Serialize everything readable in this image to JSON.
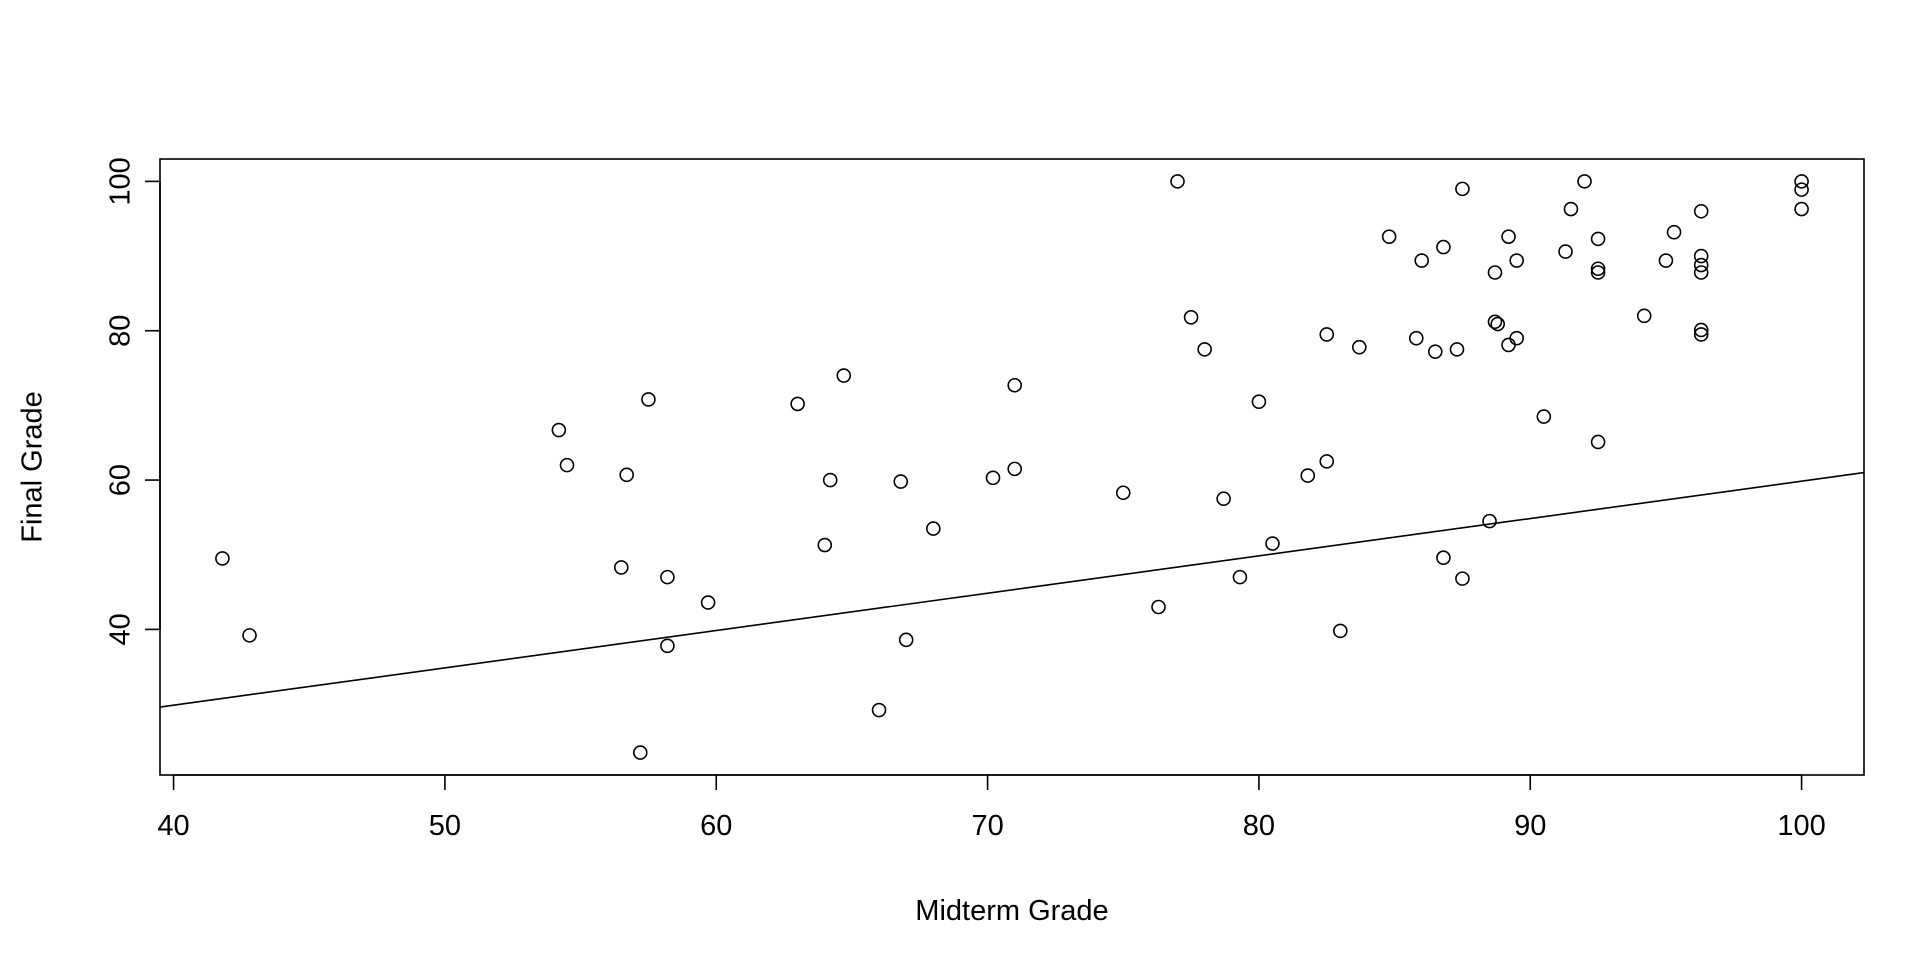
{
  "chart_data": {
    "type": "scatter",
    "title": "",
    "xlabel": "Midterm Grade",
    "ylabel": "Final Grade",
    "xlim": [
      39.5,
      102.3
    ],
    "ylim": [
      20.5,
      103
    ],
    "xticks": [
      40,
      50,
      60,
      70,
      80,
      90,
      100
    ],
    "yticks": [
      40,
      60,
      80,
      100
    ],
    "grid": false,
    "marker": "open-circle",
    "regression_line": {
      "x": [
        39.5,
        102.3
      ],
      "y": [
        29.6,
        61.0
      ]
    },
    "points": [
      {
        "x": 41.8,
        "y": 49.5
      },
      {
        "x": 42.8,
        "y": 39.2
      },
      {
        "x": 54.2,
        "y": 66.7
      },
      {
        "x": 54.5,
        "y": 62.0
      },
      {
        "x": 56.5,
        "y": 48.3
      },
      {
        "x": 56.7,
        "y": 60.7
      },
      {
        "x": 57.2,
        "y": 23.5
      },
      {
        "x": 57.5,
        "y": 70.8
      },
      {
        "x": 58.2,
        "y": 47.0
      },
      {
        "x": 58.2,
        "y": 37.8
      },
      {
        "x": 59.7,
        "y": 43.6
      },
      {
        "x": 63.0,
        "y": 70.2
      },
      {
        "x": 64.0,
        "y": 51.3
      },
      {
        "x": 64.2,
        "y": 60.0
      },
      {
        "x": 64.7,
        "y": 74.0
      },
      {
        "x": 66.0,
        "y": 29.2
      },
      {
        "x": 66.8,
        "y": 59.8
      },
      {
        "x": 67.0,
        "y": 38.6
      },
      {
        "x": 68.0,
        "y": 53.5
      },
      {
        "x": 70.2,
        "y": 60.3
      },
      {
        "x": 71.0,
        "y": 61.5
      },
      {
        "x": 71.0,
        "y": 72.7
      },
      {
        "x": 75.0,
        "y": 58.3
      },
      {
        "x": 76.3,
        "y": 43.0
      },
      {
        "x": 77.0,
        "y": 100.0
      },
      {
        "x": 77.5,
        "y": 81.8
      },
      {
        "x": 78.0,
        "y": 77.5
      },
      {
        "x": 78.7,
        "y": 57.5
      },
      {
        "x": 79.3,
        "y": 47.0
      },
      {
        "x": 80.0,
        "y": 70.5
      },
      {
        "x": 80.5,
        "y": 51.5
      },
      {
        "x": 81.8,
        "y": 60.6
      },
      {
        "x": 82.5,
        "y": 79.5
      },
      {
        "x": 82.5,
        "y": 62.5
      },
      {
        "x": 83.0,
        "y": 39.8
      },
      {
        "x": 83.7,
        "y": 77.8
      },
      {
        "x": 84.8,
        "y": 92.6
      },
      {
        "x": 85.8,
        "y": 79.0
      },
      {
        "x": 86.0,
        "y": 89.4
      },
      {
        "x": 86.5,
        "y": 77.2
      },
      {
        "x": 86.8,
        "y": 91.2
      },
      {
        "x": 86.8,
        "y": 49.6
      },
      {
        "x": 87.3,
        "y": 77.5
      },
      {
        "x": 87.5,
        "y": 99.0
      },
      {
        "x": 87.5,
        "y": 46.8
      },
      {
        "x": 88.5,
        "y": 54.5
      },
      {
        "x": 88.7,
        "y": 87.8
      },
      {
        "x": 88.7,
        "y": 81.2
      },
      {
        "x": 88.8,
        "y": 80.9
      },
      {
        "x": 89.2,
        "y": 92.6
      },
      {
        "x": 89.2,
        "y": 78.1
      },
      {
        "x": 89.5,
        "y": 89.4
      },
      {
        "x": 89.5,
        "y": 79.0
      },
      {
        "x": 90.5,
        "y": 68.5
      },
      {
        "x": 91.3,
        "y": 90.6
      },
      {
        "x": 91.5,
        "y": 96.3
      },
      {
        "x": 92.0,
        "y": 100.0
      },
      {
        "x": 92.5,
        "y": 92.3
      },
      {
        "x": 92.5,
        "y": 88.3
      },
      {
        "x": 92.5,
        "y": 87.8
      },
      {
        "x": 92.5,
        "y": 65.1
      },
      {
        "x": 94.2,
        "y": 82.0
      },
      {
        "x": 95.0,
        "y": 89.4
      },
      {
        "x": 95.3,
        "y": 93.2
      },
      {
        "x": 96.3,
        "y": 96.0
      },
      {
        "x": 96.3,
        "y": 90.0
      },
      {
        "x": 96.3,
        "y": 88.8
      },
      {
        "x": 96.3,
        "y": 87.8
      },
      {
        "x": 96.3,
        "y": 80.1
      },
      {
        "x": 96.3,
        "y": 79.5
      },
      {
        "x": 100.0,
        "y": 100.0
      },
      {
        "x": 100.0,
        "y": 98.9
      },
      {
        "x": 100.0,
        "y": 96.3
      }
    ]
  }
}
